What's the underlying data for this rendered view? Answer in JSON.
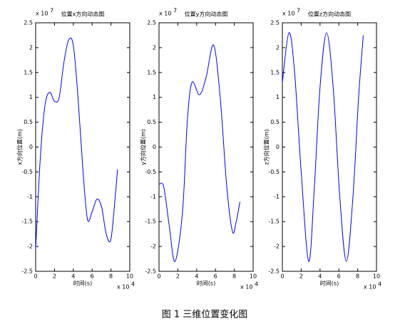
{
  "chart_data": [
    {
      "type": "line",
      "title": "位置x方向动态图",
      "xlabel": "时间(s)",
      "ylabel": "x方向位置(m)",
      "x_exponent": {
        "base": "x 10",
        "power": "4"
      },
      "y_exponent": {
        "base": "x 10",
        "power": "7"
      },
      "x": [
        0,
        0.5,
        1,
        1.5,
        2,
        2.5,
        3,
        3.5,
        4,
        4.5,
        5,
        5.5,
        6,
        6.5,
        7,
        7.5,
        8,
        8.5,
        8.7
      ],
      "values": [
        -2.05,
        -0.2,
        0.85,
        1.1,
        0.92,
        1.0,
        1.7,
        2.15,
        2.05,
        1.0,
        -0.4,
        -1.45,
        -1.3,
        -1.05,
        -1.2,
        -1.75,
        -1.85,
        -0.9,
        -0.45
      ],
      "color": "#0000ff",
      "xlim": [
        0,
        10
      ],
      "xticks": [
        0,
        2,
        4,
        6,
        8,
        10
      ],
      "ylim": [
        -2.5,
        2.5
      ],
      "yticks": [
        -2.5,
        -2,
        -1.5,
        -1,
        -0.5,
        0,
        0.5,
        1,
        1.5,
        2,
        2.5
      ]
    },
    {
      "type": "line",
      "title": "位置y方向动态图",
      "xlabel": "时间(s)",
      "ylabel": "y方向位置(m)",
      "x_exponent": {
        "base": "x 10",
        "power": "4"
      },
      "y_exponent": {
        "base": "x 10",
        "power": "7"
      },
      "x": [
        0,
        0.5,
        1.1,
        1.7,
        2.5,
        3,
        3.5,
        4.3,
        5,
        5.8,
        6.5,
        7.2,
        7.8,
        8.2,
        8.6
      ],
      "values": [
        -0.75,
        -0.8,
        -1.6,
        -2.3,
        -1.3,
        0.5,
        1.3,
        1.05,
        1.4,
        2.05,
        1.0,
        -0.8,
        -1.7,
        -1.5,
        -1.1
      ],
      "color": "#0000ff",
      "xlim": [
        0,
        10
      ],
      "xticks": [
        0,
        2,
        4,
        6,
        8,
        10
      ],
      "ylim": [
        -2.5,
        2.5
      ],
      "yticks": [
        -2.5,
        -2,
        -1.5,
        -1,
        -0.5,
        0,
        0.5,
        1,
        1.5,
        2,
        2.5
      ]
    },
    {
      "type": "line",
      "title": "位置z方向动态图",
      "xlabel": "时间(s)",
      "ylabel": "z方向位置(m)",
      "x_exponent": {
        "base": "x 10",
        "power": "4"
      },
      "y_exponent": {
        "base": "x 10",
        "power": "7"
      },
      "x": [
        0,
        0.7,
        1.3,
        2,
        2.8,
        3.4,
        4,
        4.7,
        5.4,
        6.1,
        6.8,
        7.5,
        8.1,
        8.6
      ],
      "values": [
        1.3,
        2.3,
        1.5,
        -0.5,
        -2.3,
        -0.8,
        1.2,
        2.3,
        1.2,
        -1.0,
        -2.3,
        -1.0,
        1.0,
        2.25
      ],
      "color": "#0000ff",
      "xlim": [
        0,
        10
      ],
      "xticks": [
        0,
        2,
        4,
        6,
        8,
        10
      ],
      "ylim": [
        -2.5,
        2.5
      ],
      "yticks": [
        -2.5,
        -2,
        -1.5,
        -1,
        -0.5,
        0,
        0.5,
        1,
        1.5,
        2,
        2.5
      ]
    }
  ],
  "caption": "图 1  三维位置变化图"
}
